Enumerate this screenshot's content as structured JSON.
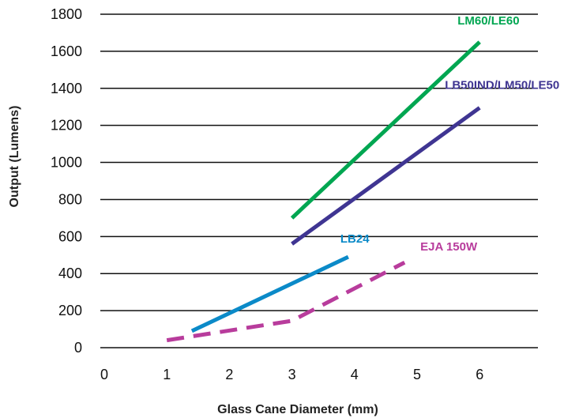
{
  "chart_data": {
    "type": "line",
    "title": "",
    "xlabel": "Glass Cane Diameter (mm)",
    "ylabel": "Output (Lumens)",
    "xlim": [
      0,
      7
    ],
    "ylim": [
      0,
      1800
    ],
    "x_ticks": [
      "0",
      "1",
      "2",
      "3",
      "4",
      "5",
      "6"
    ],
    "y_ticks": [
      "0",
      "200",
      "400",
      "600",
      "800",
      "1000",
      "1200",
      "1400",
      "1600",
      "1800"
    ],
    "grid": "horizontal",
    "legend": "inline labels",
    "series": [
      {
        "name": "LM60/LE60",
        "color": "#00a651",
        "style": "solid",
        "points": [
          [
            3.0,
            700
          ],
          [
            6.0,
            1650
          ]
        ]
      },
      {
        "name": "LB50IND/LM50/LE50",
        "color": "#3f3592",
        "style": "solid",
        "points": [
          [
            3.0,
            560
          ],
          [
            6.0,
            1295
          ]
        ]
      },
      {
        "name": "LB24",
        "color": "#0b8ac8",
        "style": "solid",
        "points": [
          [
            1.4,
            90
          ],
          [
            3.9,
            490
          ]
        ]
      },
      {
        "name": "EJA 150W",
        "color": "#b83c9c",
        "style": "dashed",
        "points": [
          [
            1.0,
            40
          ],
          [
            3.0,
            145
          ],
          [
            4.8,
            460
          ]
        ]
      }
    ]
  }
}
